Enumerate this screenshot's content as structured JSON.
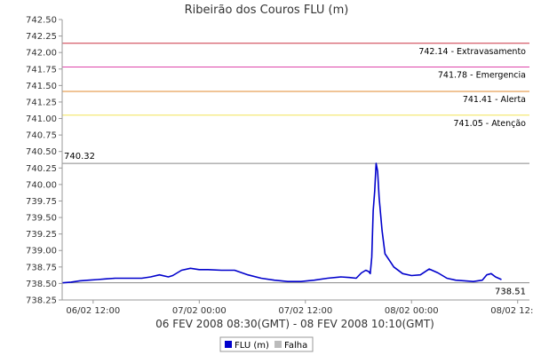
{
  "chart_data": {
    "type": "line",
    "title": "Ribeirão dos Couros FLU (m)",
    "xlabel": "06 FEV 2008 08:30(GMT) - 08 FEV 2008 10:10(GMT)",
    "ylabel": "",
    "ylim": [
      738.25,
      742.5
    ],
    "xlim": [
      "2008-02-06T08:30",
      "2008-02-08T13:20"
    ],
    "y_ticks": [
      "738.25",
      "738.50",
      "738.75",
      "739.00",
      "739.25",
      "739.50",
      "739.75",
      "740.00",
      "740.25",
      "740.50",
      "740.75",
      "741.00",
      "741.25",
      "741.50",
      "741.75",
      "742.00",
      "742.25",
      "742.50"
    ],
    "x_ticks": [
      {
        "t": "2008-02-06T12:00",
        "label": "06/02 12:00"
      },
      {
        "t": "2008-02-07T00:00",
        "label": "07/02 00:00"
      },
      {
        "t": "2008-02-07T12:00",
        "label": "07/02 12:00"
      },
      {
        "t": "2008-02-08T00:00",
        "label": "08/02 00:00"
      },
      {
        "t": "2008-02-08T12:00",
        "label": "08/02 12:00"
      }
    ],
    "grid": false,
    "legend_position": "bottom",
    "thresholds": [
      {
        "value": 742.14,
        "label": "742.14 - Extravasamento",
        "color": "#cc3344"
      },
      {
        "value": 741.78,
        "label": "741.78 - Emergencia",
        "color": "#dd44aa"
      },
      {
        "value": 741.41,
        "label": "741.41 - Alerta",
        "color": "#e08a2e"
      },
      {
        "value": 741.05,
        "label": "741.05 - Atenção",
        "color": "#f2e455"
      }
    ],
    "max_marker": {
      "value": 740.32,
      "label": "740.32",
      "color": "#888888"
    },
    "min_marker": {
      "value": 738.51,
      "label": "738.51",
      "color": "#888888"
    },
    "series": [
      {
        "name": "FLU (m)",
        "color": "#0000cc",
        "x": [
          "2008-02-06T08:30",
          "2008-02-06T09:30",
          "2008-02-06T10:30",
          "2008-02-06T11:30",
          "2008-02-06T12:30",
          "2008-02-06T13:30",
          "2008-02-06T14:30",
          "2008-02-06T15:30",
          "2008-02-06T16:30",
          "2008-02-06T17:30",
          "2008-02-06T18:30",
          "2008-02-06T19:30",
          "2008-02-06T20:30",
          "2008-02-06T21:00",
          "2008-02-06T22:00",
          "2008-02-06T23:00",
          "2008-02-07T00:00",
          "2008-02-07T01:00",
          "2008-02-07T02:30",
          "2008-02-07T04:00",
          "2008-02-07T05:30",
          "2008-02-07T07:00",
          "2008-02-07T08:30",
          "2008-02-07T10:00",
          "2008-02-07T11:30",
          "2008-02-07T13:00",
          "2008-02-07T14:30",
          "2008-02-07T16:00",
          "2008-02-07T17:00",
          "2008-02-07T17:45",
          "2008-02-07T18:20",
          "2008-02-07T18:50",
          "2008-02-07T19:10",
          "2008-02-07T19:20",
          "2008-02-07T19:30",
          "2008-02-07T19:40",
          "2008-02-07T19:50",
          "2008-02-07T20:00",
          "2008-02-07T20:10",
          "2008-02-07T20:20",
          "2008-02-07T20:40",
          "2008-02-07T21:00",
          "2008-02-07T21:30",
          "2008-02-07T22:00",
          "2008-02-07T23:00",
          "2008-02-08T00:00",
          "2008-02-08T01:00",
          "2008-02-08T02:00",
          "2008-02-08T03:00",
          "2008-02-08T04:00",
          "2008-02-08T05:00",
          "2008-02-08T06:00",
          "2008-02-08T07:00",
          "2008-02-08T08:00",
          "2008-02-08T08:30",
          "2008-02-08T09:00",
          "2008-02-08T09:30",
          "2008-02-08T10:10"
        ],
        "values": [
          738.51,
          738.52,
          738.54,
          738.55,
          738.56,
          738.57,
          738.58,
          738.58,
          738.58,
          738.58,
          738.6,
          738.63,
          738.6,
          738.62,
          738.7,
          738.73,
          738.71,
          738.71,
          738.7,
          738.7,
          738.63,
          738.58,
          738.55,
          738.53,
          738.53,
          738.55,
          738.58,
          738.6,
          738.59,
          738.58,
          738.66,
          738.7,
          738.68,
          738.65,
          738.9,
          739.6,
          739.9,
          740.32,
          740.2,
          739.8,
          739.3,
          738.95,
          738.85,
          738.75,
          738.65,
          738.62,
          738.63,
          738.72,
          738.66,
          738.58,
          738.55,
          738.54,
          738.53,
          738.55,
          738.63,
          738.65,
          738.6,
          738.56
        ]
      }
    ],
    "legend": [
      {
        "label": "FLU (m)",
        "color": "#0000cc"
      },
      {
        "label": "Falha",
        "color": "#bbbbbb"
      }
    ]
  }
}
